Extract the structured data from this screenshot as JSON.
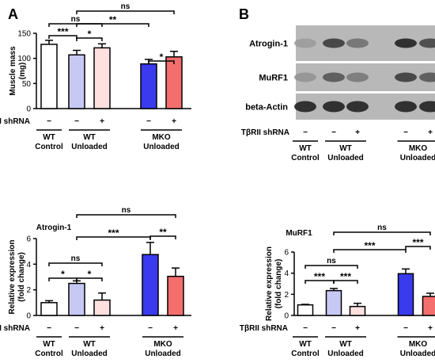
{
  "panel_labels": {
    "a": "A",
    "b": "B"
  },
  "groups": [
    {
      "line1": "WT",
      "line2": "Control"
    },
    {
      "line1": "WT",
      "line2": "Unloaded"
    },
    {
      "line1": "MKO",
      "line2": "Unloaded"
    }
  ],
  "shrna_row": {
    "label": "TβRII shRNA",
    "minus": "−",
    "plus": "+"
  },
  "bar_colors": [
    "#ffffff",
    "#c8c8f5",
    "#ffe0e0",
    "#3a3aef",
    "#f56e6e"
  ],
  "chart_data": [
    {
      "id": "muscle-mass",
      "type": "bar",
      "title": "",
      "xlabel": "",
      "ylabel": "Muscle mass (mg)",
      "ylim": [
        0,
        150
      ],
      "yticks": [
        "0",
        "50",
        "100",
        "150"
      ],
      "categories": [
        "WT Control −",
        "WT Unloaded −",
        "WT Unloaded +",
        "MKO Unloaded −",
        "MKO Unloaded +"
      ],
      "values": [
        128,
        107,
        121,
        89,
        103
      ],
      "errors": [
        8,
        9,
        8,
        9,
        11
      ],
      "significance": [
        {
          "from": 0,
          "to": 1,
          "label": "***"
        },
        {
          "from": 1,
          "to": 2,
          "label": "*"
        },
        {
          "from": 0,
          "to": 2,
          "label": "ns"
        },
        {
          "from": 3,
          "to": 4,
          "label": "*"
        },
        {
          "from": 1,
          "to": 3,
          "label": "**"
        },
        {
          "from": 1,
          "to": 4,
          "label": "ns"
        }
      ]
    },
    {
      "id": "atrogin-1",
      "type": "bar",
      "title": "Atrogin-1",
      "xlabel": "",
      "ylabel": "Relative expression (fold change)",
      "ylim": [
        0,
        6
      ],
      "yticks": [
        "0",
        "2",
        "4",
        "6"
      ],
      "categories": [
        "WT Control −",
        "WT Unloaded −",
        "WT Unloaded +",
        "MKO Unloaded −",
        "MKO Unloaded +"
      ],
      "values": [
        1.0,
        2.5,
        1.2,
        4.75,
        3.05
      ],
      "errors": [
        0.15,
        0.2,
        0.55,
        0.95,
        0.65
      ],
      "significance": [
        {
          "from": 0,
          "to": 1,
          "label": "*"
        },
        {
          "from": 1,
          "to": 2,
          "label": "*"
        },
        {
          "from": 0,
          "to": 2,
          "label": "ns"
        },
        {
          "from": 3,
          "to": 4,
          "label": "**"
        },
        {
          "from": 1,
          "to": 3,
          "label": "***"
        },
        {
          "from": 1,
          "to": 4,
          "label": "ns"
        }
      ]
    },
    {
      "id": "murf1",
      "type": "bar",
      "title": "MuRF1",
      "xlabel": "",
      "ylabel": "Relative expression (fold change)",
      "ylim": [
        0,
        6
      ],
      "yticks": [
        "0",
        "2",
        "4",
        "6"
      ],
      "categories": [
        "WT Control −",
        "WT Unloaded −",
        "WT Unloaded +",
        "MKO Unloaded −",
        "MKO Unloaded +"
      ],
      "values": [
        1.0,
        2.35,
        0.85,
        3.95,
        1.8
      ],
      "errors": [
        0.05,
        0.2,
        0.3,
        0.45,
        0.3
      ],
      "significance": [
        {
          "from": 0,
          "to": 1,
          "label": "***"
        },
        {
          "from": 1,
          "to": 2,
          "label": "***"
        },
        {
          "from": 0,
          "to": 2,
          "label": "ns"
        },
        {
          "from": 3,
          "to": 4,
          "label": "***"
        },
        {
          "from": 1,
          "to": 3,
          "label": "***"
        },
        {
          "from": 1,
          "to": 4,
          "label": "ns"
        }
      ]
    }
  ],
  "blot": {
    "rows": [
      {
        "label": "Atrogin-1",
        "intensities": [
          0.25,
          0.8,
          0.5,
          0.95,
          0.75
        ]
      },
      {
        "label": "MuRF1",
        "intensities": [
          0.3,
          0.65,
          0.45,
          0.8,
          0.65
        ]
      },
      {
        "label": "beta-Actin",
        "intensities": [
          0.95,
          0.95,
          0.95,
          0.95,
          0.95
        ]
      }
    ]
  }
}
